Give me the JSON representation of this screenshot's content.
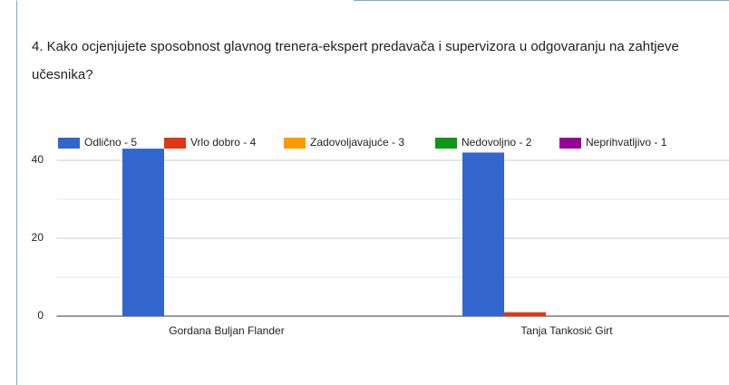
{
  "chart_data": {
    "type": "bar",
    "title": "4. Kako ocjenjujete sposobnost  glavnog trenera-ekspert predavača i  supervizora  u odgovaranju na zahtjeve učesnika?",
    "categories": [
      "Gordana Buljan Flander",
      "Tanja Tankosić Girt"
    ],
    "series": [
      {
        "name": "Odlično - 5",
        "color": "#3366cc",
        "values": [
          43,
          42
        ]
      },
      {
        "name": "Vrlo dobro - 4",
        "color": "#dc3912",
        "values": [
          0,
          1
        ]
      },
      {
        "name": "Zadovoljavajuće - 3",
        "color": "#ff9900",
        "values": [
          0,
          0
        ]
      },
      {
        "name": "Nedovoljno - 2",
        "color": "#109618",
        "values": [
          0,
          0
        ]
      },
      {
        "name": "Neprihvatljivo - 1",
        "color": "#990099",
        "values": [
          0,
          0
        ]
      }
    ],
    "ylim": [
      0,
      45
    ],
    "yticks": [
      0,
      20,
      40
    ],
    "minor_yticks": [
      10,
      30
    ],
    "grid": true,
    "legend": "top"
  }
}
